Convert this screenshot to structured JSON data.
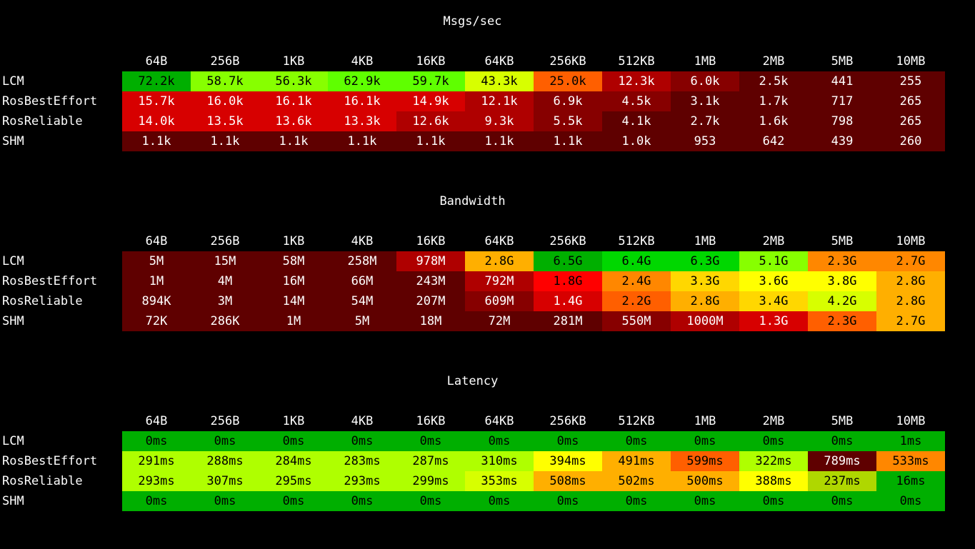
{
  "chart_data": [
    {
      "type": "heatmap",
      "title": "Msgs/sec",
      "columns": [
        "64B",
        "256B",
        "1KB",
        "4KB",
        "16KB",
        "64KB",
        "256KB",
        "512KB",
        "1MB",
        "2MB",
        "5MB",
        "10MB"
      ],
      "rows": [
        {
          "label": "LCM",
          "values": [
            "72.2k",
            "58.7k",
            "56.3k",
            "62.9k",
            "59.7k",
            "43.3k",
            "25.0k",
            "12.3k",
            "6.0k",
            "2.5k",
            "441",
            "255"
          ],
          "colors": [
            "#00af00",
            "#87ff00",
            "#87ff00",
            "#5fff00",
            "#5fff00",
            "#d7ff00",
            "#ff5f00",
            "#af0000",
            "#870000",
            "#5f0000",
            "#5f0000",
            "#5f0000"
          ]
        },
        {
          "label": "RosBestEffort",
          "values": [
            "15.7k",
            "16.0k",
            "16.1k",
            "16.1k",
            "14.9k",
            "12.1k",
            "6.9k",
            "4.5k",
            "3.1k",
            "1.7k",
            "717",
            "265"
          ],
          "colors": [
            "#d70000",
            "#d70000",
            "#d70000",
            "#d70000",
            "#d70000",
            "#af0000",
            "#870000",
            "#870000",
            "#5f0000",
            "#5f0000",
            "#5f0000",
            "#5f0000"
          ]
        },
        {
          "label": "RosReliable",
          "values": [
            "14.0k",
            "13.5k",
            "13.6k",
            "13.3k",
            "12.6k",
            "9.3k",
            "5.5k",
            "4.1k",
            "2.7k",
            "1.6k",
            "798",
            "265"
          ],
          "colors": [
            "#d70000",
            "#d70000",
            "#d70000",
            "#d70000",
            "#af0000",
            "#af0000",
            "#870000",
            "#5f0000",
            "#5f0000",
            "#5f0000",
            "#5f0000",
            "#5f0000"
          ]
        },
        {
          "label": "SHM",
          "values": [
            "1.1k",
            "1.1k",
            "1.1k",
            "1.1k",
            "1.1k",
            "1.1k",
            "1.1k",
            "1.0k",
            "953",
            "642",
            "439",
            "260"
          ],
          "colors": [
            "#5f0000",
            "#5f0000",
            "#5f0000",
            "#5f0000",
            "#5f0000",
            "#5f0000",
            "#5f0000",
            "#5f0000",
            "#5f0000",
            "#5f0000",
            "#5f0000",
            "#5f0000"
          ]
        }
      ]
    },
    {
      "type": "heatmap",
      "title": "Bandwidth",
      "columns": [
        "64B",
        "256B",
        "1KB",
        "4KB",
        "16KB",
        "64KB",
        "256KB",
        "512KB",
        "1MB",
        "2MB",
        "5MB",
        "10MB"
      ],
      "rows": [
        {
          "label": "LCM",
          "values": [
            "5M",
            "15M",
            "58M",
            "258M",
            "978M",
            "2.8G",
            "6.5G",
            "6.4G",
            "6.3G",
            "5.1G",
            "2.3G",
            "2.7G"
          ],
          "colors": [
            "#5f0000",
            "#5f0000",
            "#5f0000",
            "#5f0000",
            "#af0000",
            "#ffaf00",
            "#00af00",
            "#00d700",
            "#00d700",
            "#87ff00",
            "#ff8700",
            "#ff8700"
          ]
        },
        {
          "label": "RosBestEffort",
          "values": [
            "1M",
            "4M",
            "16M",
            "66M",
            "243M",
            "792M",
            "1.8G",
            "2.4G",
            "3.3G",
            "3.6G",
            "3.8G",
            "2.8G"
          ],
          "colors": [
            "#5f0000",
            "#5f0000",
            "#5f0000",
            "#5f0000",
            "#5f0000",
            "#af0000",
            "#ff0000",
            "#ff8700",
            "#ffd700",
            "#ffff00",
            "#ffff00",
            "#ffaf00"
          ]
        },
        {
          "label": "RosReliable",
          "values": [
            "894K",
            "3M",
            "14M",
            "54M",
            "207M",
            "609M",
            "1.4G",
            "2.2G",
            "2.8G",
            "3.4G",
            "4.2G",
            "2.8G"
          ],
          "colors": [
            "#5f0000",
            "#5f0000",
            "#5f0000",
            "#5f0000",
            "#5f0000",
            "#870000",
            "#d70000",
            "#ff5f00",
            "#ffaf00",
            "#ffd700",
            "#d7ff00",
            "#ffaf00"
          ]
        },
        {
          "label": "SHM",
          "values": [
            "72K",
            "286K",
            "1M",
            "5M",
            "18M",
            "72M",
            "281M",
            "550M",
            "1000M",
            "1.3G",
            "2.3G",
            "2.7G"
          ],
          "colors": [
            "#5f0000",
            "#5f0000",
            "#5f0000",
            "#5f0000",
            "#5f0000",
            "#5f0000",
            "#5f0000",
            "#870000",
            "#af0000",
            "#d70000",
            "#ff5f00",
            "#ffaf00"
          ]
        }
      ]
    },
    {
      "type": "heatmap",
      "title": "Latency",
      "columns": [
        "64B",
        "256B",
        "1KB",
        "4KB",
        "16KB",
        "64KB",
        "256KB",
        "512KB",
        "1MB",
        "2MB",
        "5MB",
        "10MB"
      ],
      "rows": [
        {
          "label": "LCM",
          "values": [
            "0ms",
            "0ms",
            "0ms",
            "0ms",
            "0ms",
            "0ms",
            "0ms",
            "0ms",
            "0ms",
            "0ms",
            "0ms",
            "1ms"
          ],
          "colors": [
            "#00af00",
            "#00af00",
            "#00af00",
            "#00af00",
            "#00af00",
            "#00af00",
            "#00af00",
            "#00af00",
            "#00af00",
            "#00af00",
            "#00af00",
            "#00af00"
          ]
        },
        {
          "label": "RosBestEffort",
          "values": [
            "291ms",
            "288ms",
            "284ms",
            "283ms",
            "287ms",
            "310ms",
            "394ms",
            "491ms",
            "599ms",
            "322ms",
            "789ms",
            "533ms"
          ],
          "colors": [
            "#afff00",
            "#afff00",
            "#afff00",
            "#afff00",
            "#afff00",
            "#afff00",
            "#ffff00",
            "#ffaf00",
            "#ff5f00",
            "#afff00",
            "#5f0000",
            "#ff8700"
          ]
        },
        {
          "label": "RosReliable",
          "values": [
            "293ms",
            "307ms",
            "295ms",
            "293ms",
            "299ms",
            "353ms",
            "508ms",
            "502ms",
            "500ms",
            "388ms",
            "237ms",
            "16ms"
          ],
          "colors": [
            "#afff00",
            "#afff00",
            "#afff00",
            "#afff00",
            "#afff00",
            "#d7ff00",
            "#ffaf00",
            "#ffaf00",
            "#ffaf00",
            "#ffff00",
            "#afd700",
            "#00af00"
          ]
        },
        {
          "label": "SHM",
          "values": [
            "0ms",
            "0ms",
            "0ms",
            "0ms",
            "0ms",
            "0ms",
            "0ms",
            "0ms",
            "0ms",
            "0ms",
            "0ms",
            "0ms"
          ],
          "colors": [
            "#00af00",
            "#00af00",
            "#00af00",
            "#00af00",
            "#00af00",
            "#00af00",
            "#00af00",
            "#00af00",
            "#00af00",
            "#00af00",
            "#00af00",
            "#00af00"
          ]
        }
      ]
    }
  ]
}
